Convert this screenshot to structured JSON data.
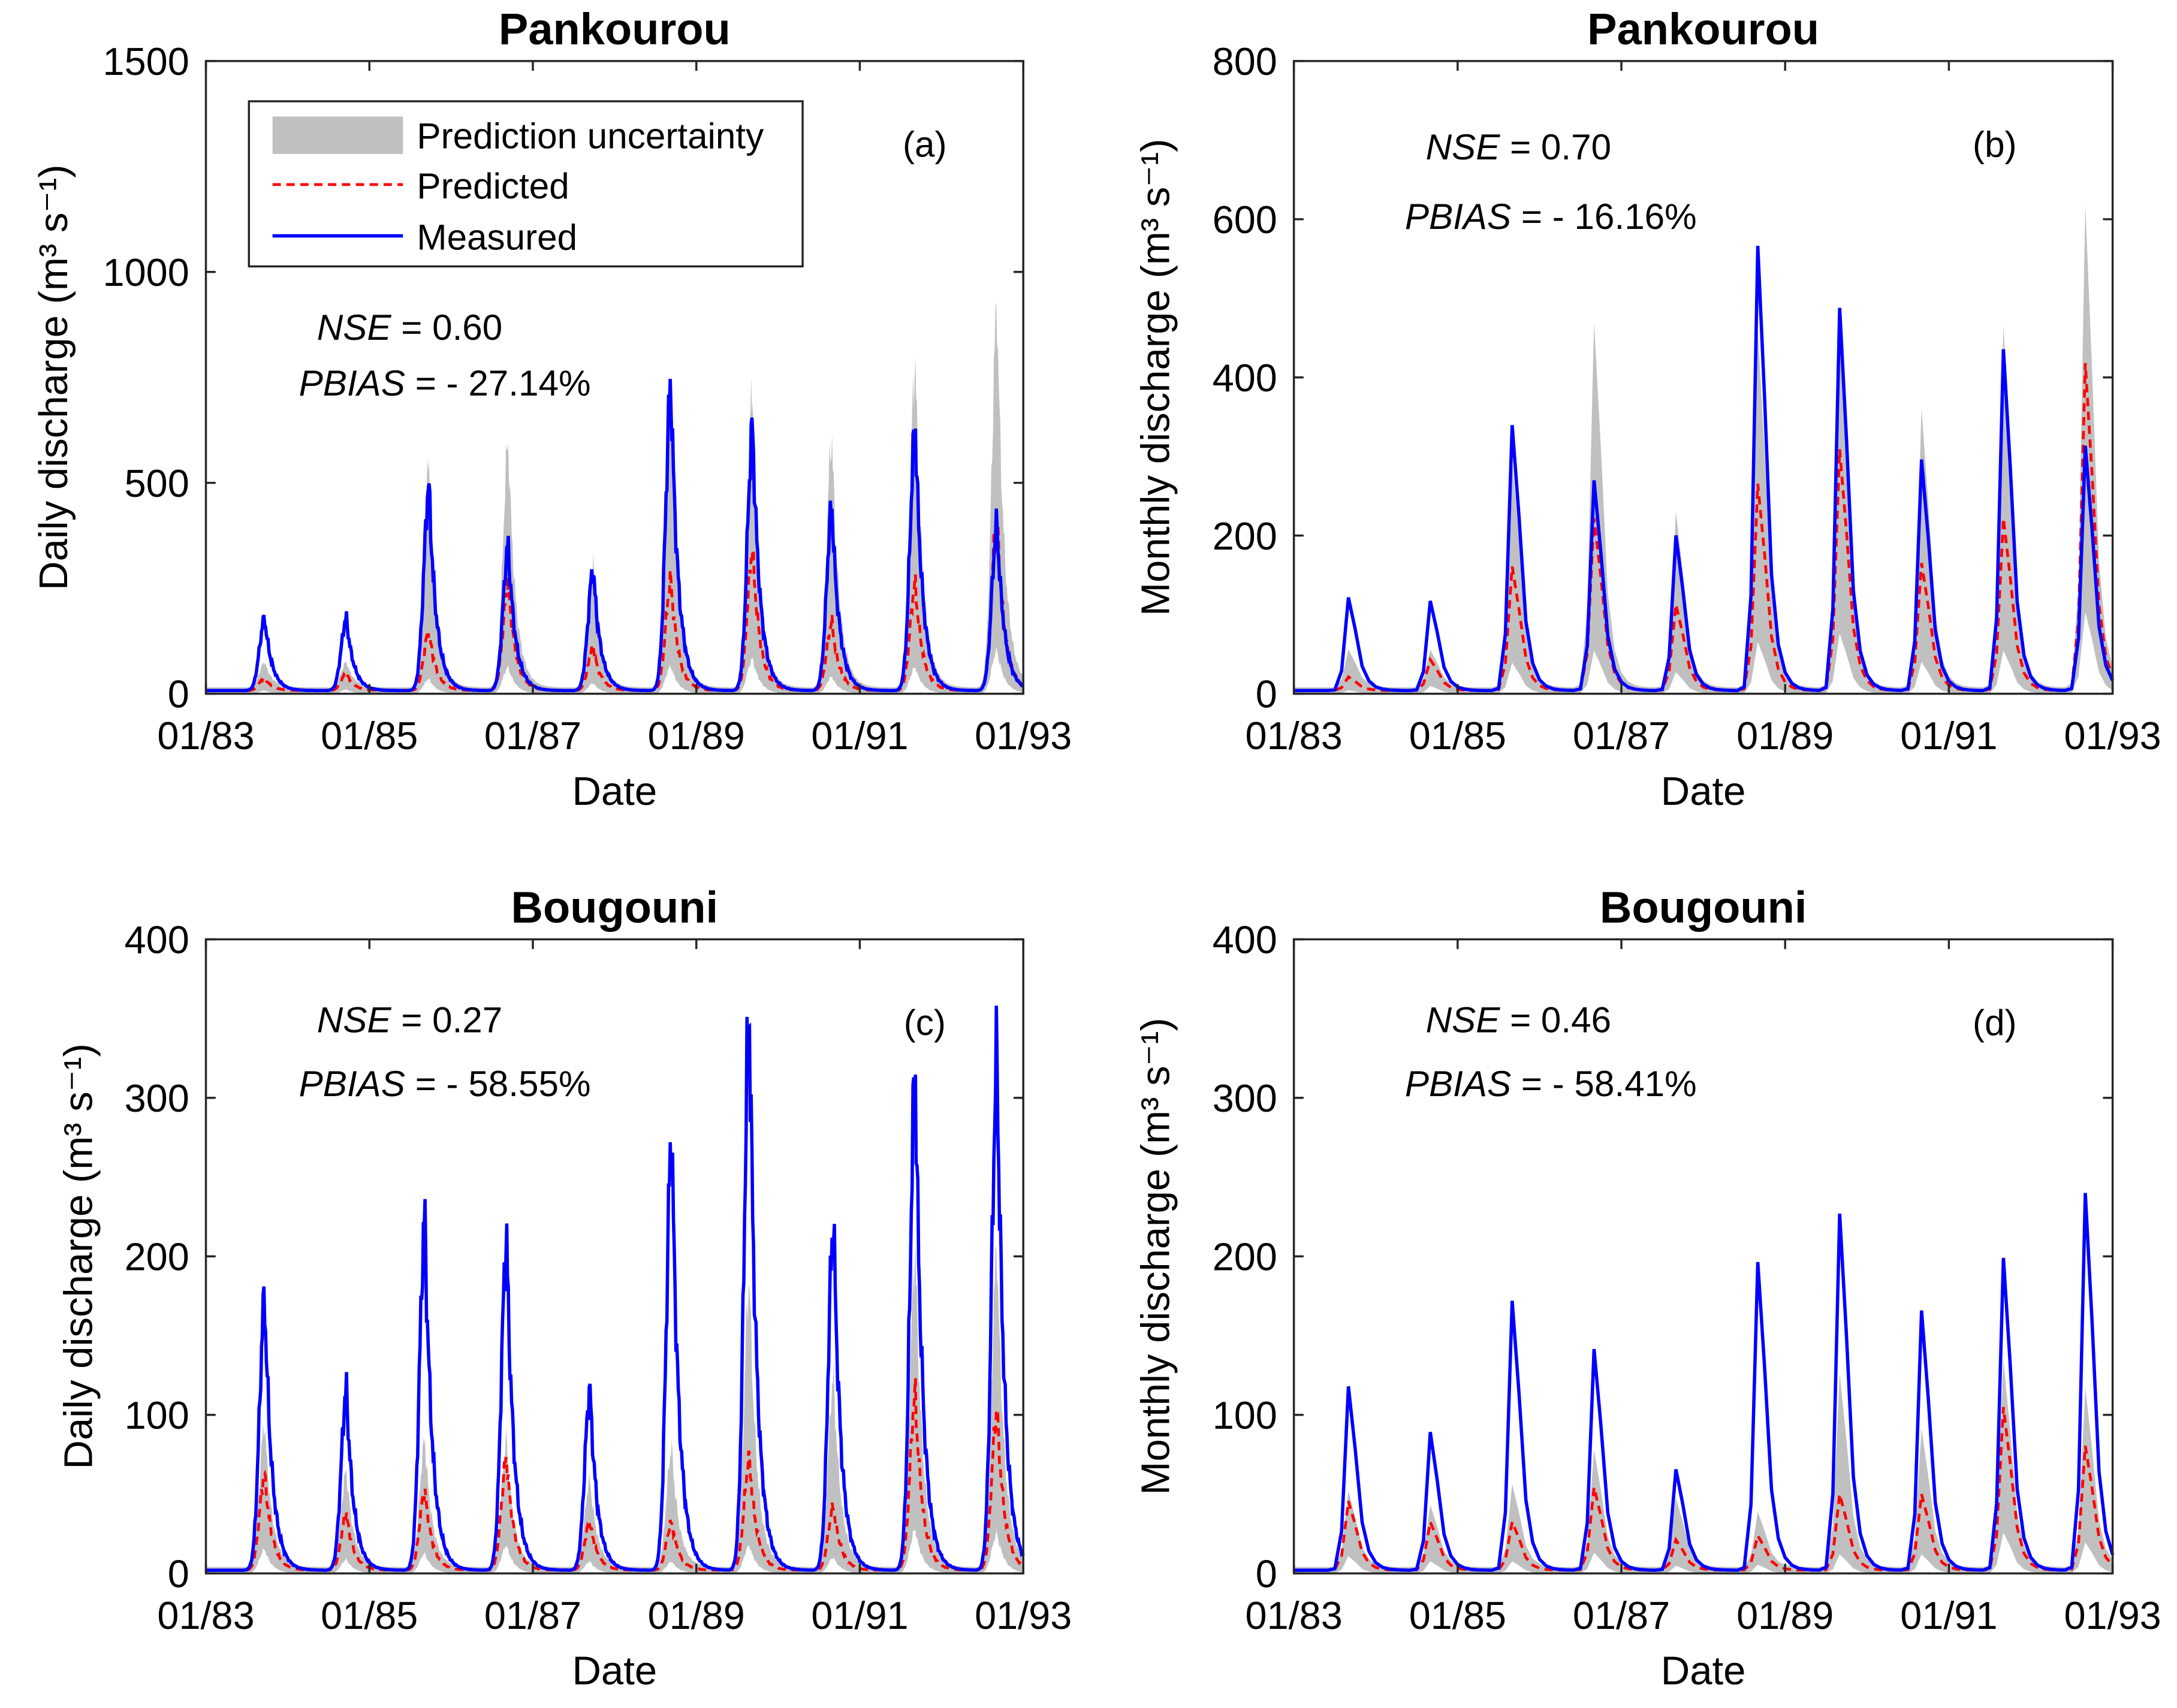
{
  "chart_data": [
    {
      "id": "a",
      "type": "area",
      "title": "Pankourou",
      "panel_label": "(a)",
      "xlabel": "Date",
      "ylabel": "Daily discharge (m³ s⁻¹)",
      "xlim": [
        "01/83",
        "01/93"
      ],
      "xticks": [
        "01/83",
        "01/85",
        "01/87",
        "01/89",
        "01/91",
        "01/93"
      ],
      "ylim": [
        0,
        1500
      ],
      "yticks": [
        0,
        500,
        1000,
        1500
      ],
      "stats": {
        "nse_label": "NSE",
        "nse_value": " = 0.60",
        "pbias_label": "PBIAS",
        "pbias_value": " = - 27.14%"
      },
      "legend": {
        "position": "top-left",
        "entries": [
          "Prediction uncertainty",
          "Predicted",
          "Measured"
        ]
      },
      "resolution": "daily",
      "peak_time_years": [
        1983.72,
        1984.72,
        1985.73,
        1986.7,
        1987.74,
        1988.69,
        1989.69,
        1990.66,
        1991.68,
        1992.68
      ],
      "series": [
        {
          "name": "Measured",
          "color": "#0000ff",
          "peaks": [
            170,
            170,
            480,
            340,
            285,
            720,
            620,
            430,
            620,
            390
          ]
        },
        {
          "name": "Predicted",
          "color": "#ff0000",
          "peaks": [
            30,
            40,
            140,
            250,
            100,
            260,
            330,
            160,
            250,
            410
          ]
        },
        {
          "name": "Prediction uncertainty upper",
          "color": "#c0c0c0",
          "peaks": [
            60,
            60,
            520,
            580,
            290,
            700,
            700,
            590,
            770,
            900
          ]
        }
      ]
    },
    {
      "id": "b",
      "type": "area",
      "title": "Pankourou",
      "panel_label": "(b)",
      "xlabel": "Date",
      "ylabel": "Monthly discharge (m³ s⁻¹)",
      "xlim": [
        "01/83",
        "01/93"
      ],
      "xticks": [
        "01/83",
        "01/85",
        "01/87",
        "01/89",
        "01/91",
        "01/93"
      ],
      "ylim": [
        0,
        800
      ],
      "yticks": [
        0,
        200,
        400,
        600,
        800
      ],
      "stats": {
        "nse_label": "NSE",
        "nse_value": " = 0.70",
        "pbias_label": "PBIAS",
        "pbias_value": " = - 16.16%"
      },
      "resolution": "monthly",
      "peak_time_years": [
        1983.7,
        1984.7,
        1985.7,
        1986.7,
        1987.7,
        1988.7,
        1989.7,
        1990.7,
        1991.7,
        1992.7
      ],
      "series": [
        {
          "name": "Measured",
          "color": "#0000ff",
          "peaks": [
            135,
            130,
            385,
            305,
            225,
            645,
            555,
            335,
            495,
            355
          ]
        },
        {
          "name": "Predicted",
          "color": "#ff0000",
          "peaks": [
            20,
            45,
            180,
            250,
            125,
            300,
            350,
            185,
            250,
            475
          ]
        },
        {
          "name": "Prediction uncertainty upper",
          "color": "#c0c0c0",
          "peaks": [
            55,
            55,
            330,
            530,
            255,
            520,
            520,
            405,
            525,
            700
          ]
        }
      ]
    },
    {
      "id": "c",
      "type": "area",
      "title": "Bougouni",
      "panel_label": "(c)",
      "xlabel": "Date",
      "ylabel": "Daily discharge (m³ s⁻¹)",
      "xlim": [
        "01/83",
        "01/93"
      ],
      "xticks": [
        "01/83",
        "01/85",
        "01/87",
        "01/89",
        "01/91",
        "01/93"
      ],
      "ylim": [
        0,
        400
      ],
      "yticks": [
        0,
        100,
        200,
        300,
        400
      ],
      "stats": {
        "nse_label": "NSE",
        "nse_value": " = 0.27",
        "pbias_label": "PBIAS",
        "pbias_value": " = - 58.55%"
      },
      "resolution": "daily",
      "peak_time_years": [
        1983.72,
        1984.72,
        1985.68,
        1986.68,
        1987.7,
        1988.7,
        1989.65,
        1990.68,
        1991.68,
        1992.68
      ],
      "series": [
        {
          "name": "Measured",
          "color": "#0000ff",
          "peaks": [
            170,
            113,
            220,
            207,
            113,
            273,
            350,
            220,
            312,
            322
          ]
        },
        {
          "name": "Predicted",
          "color": "#ff0000",
          "peaks": [
            60,
            35,
            50,
            70,
            30,
            30,
            70,
            40,
            110,
            100
          ]
        },
        {
          "name": "Prediction uncertainty upper",
          "color": "#c0c0c0",
          "peaks": [
            90,
            60,
            80,
            80,
            55,
            75,
            180,
            120,
            200,
            200
          ]
        }
      ]
    },
    {
      "id": "d",
      "type": "area",
      "title": "Bougouni",
      "panel_label": "(d)",
      "xlabel": "Date",
      "ylabel": "Monthly discharge (m³ s⁻¹)",
      "xlim": [
        "01/83",
        "01/93"
      ],
      "xticks": [
        "01/83",
        "01/85",
        "01/87",
        "01/89",
        "01/91",
        "01/93"
      ],
      "ylim": [
        0,
        400
      ],
      "yticks": [
        0,
        100,
        200,
        300,
        400
      ],
      "stats": {
        "nse_label": "NSE",
        "nse_value": " = 0.46",
        "pbias_label": "PBIAS",
        "pbias_value": " = - 58.41%"
      },
      "resolution": "monthly",
      "peak_time_years": [
        1983.7,
        1984.7,
        1985.7,
        1986.7,
        1987.7,
        1988.7,
        1989.7,
        1990.7,
        1991.7,
        1992.7
      ],
      "series": [
        {
          "name": "Measured",
          "color": "#0000ff",
          "peaks": [
            133,
            100,
            195,
            160,
            73,
            223,
            258,
            188,
            226,
            273
          ]
        },
        {
          "name": "Predicted",
          "color": "#ff0000",
          "peaks": [
            50,
            35,
            35,
            60,
            22,
            25,
            55,
            55,
            118,
            90
          ]
        },
        {
          "name": "Prediction uncertainty upper",
          "color": "#c0c0c0",
          "peaks": [
            55,
            45,
            60,
            85,
            50,
            40,
            140,
            100,
            150,
            130
          ]
        }
      ]
    }
  ]
}
